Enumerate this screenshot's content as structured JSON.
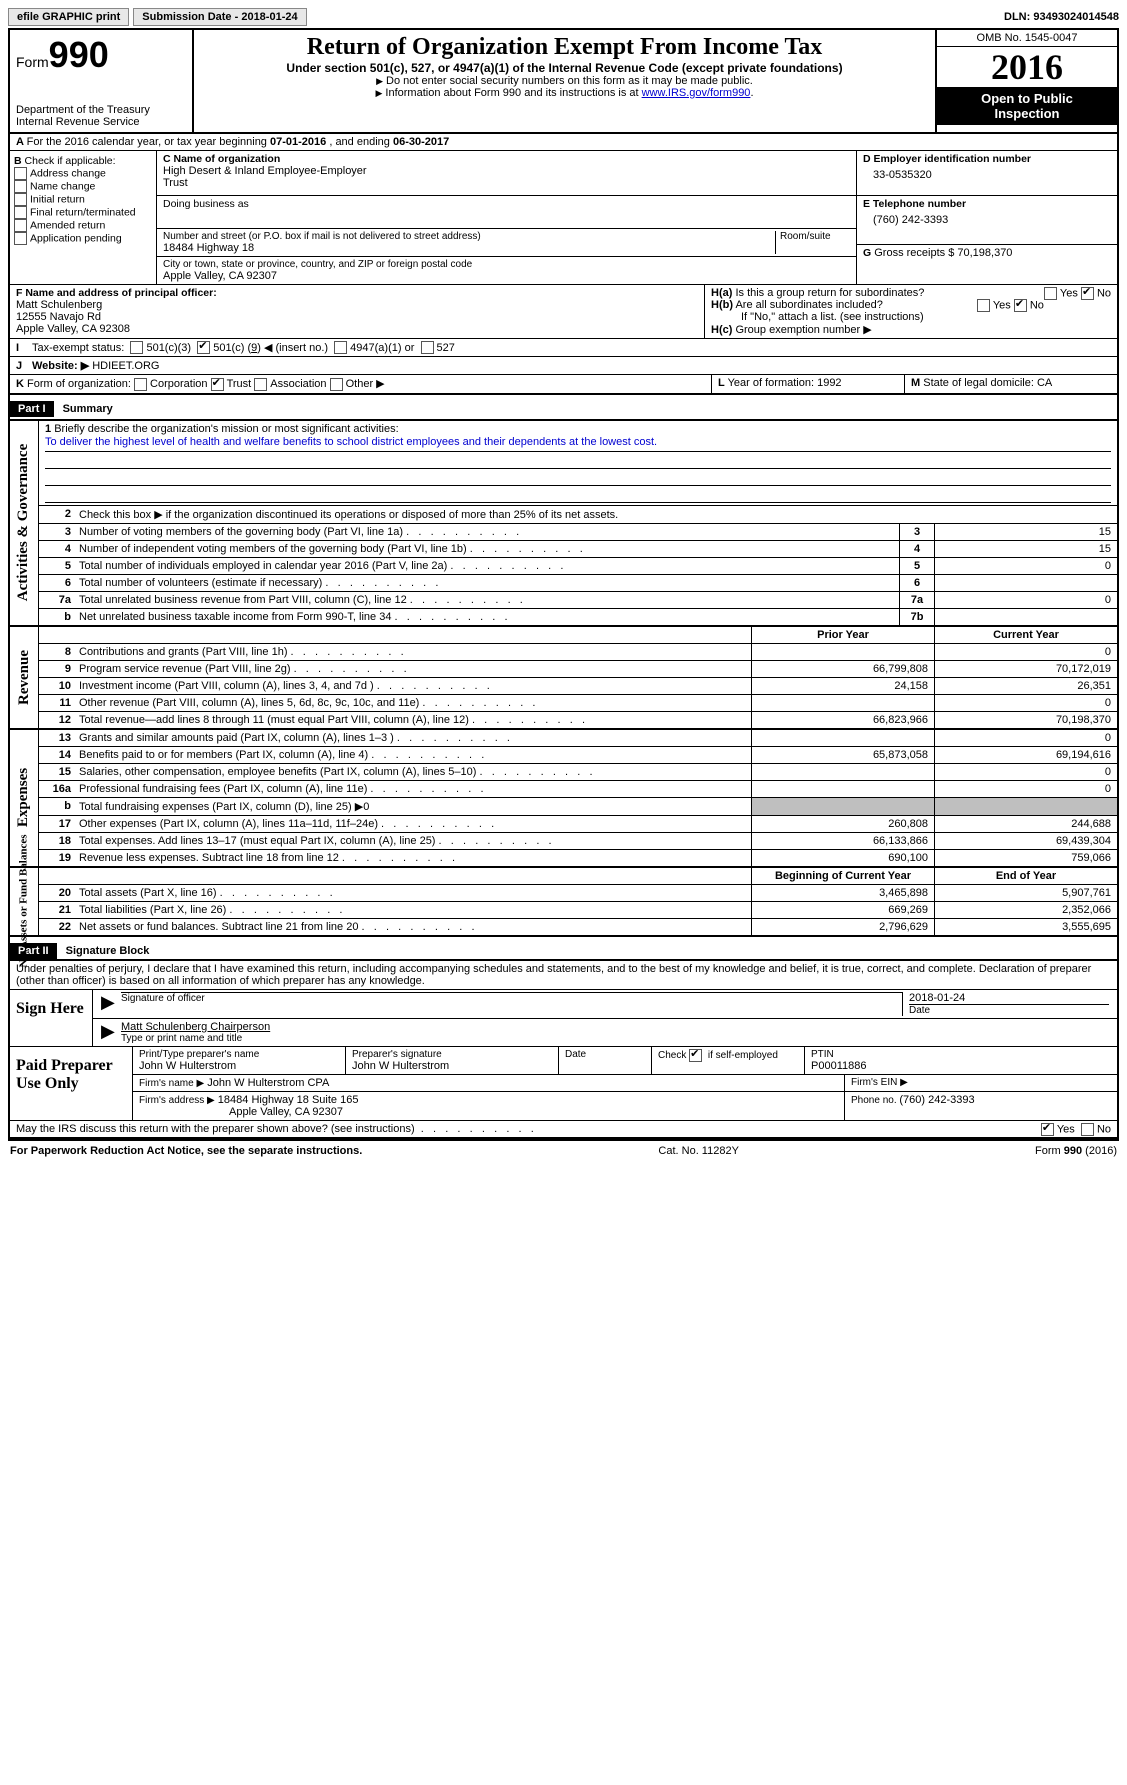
{
  "topbar": {
    "efile": "efile GRAPHIC print",
    "subdate_label": "Submission Date - ",
    "subdate": "2018-01-24",
    "dln_label": "DLN: ",
    "dln": "93493024014548"
  },
  "header": {
    "form_label": "Form",
    "form_num": "990",
    "dept1": "Department of the Treasury",
    "dept2": "Internal Revenue Service",
    "title": "Return of Organization Exempt From Income Tax",
    "sub": "Under section 501(c), 527, or 4947(a)(1) of the Internal Revenue Code (except private foundations)",
    "line1": "Do not enter social security numbers on this form as it may be made public.",
    "line2_pre": "Information about Form 990 and its instructions is at ",
    "line2_link": "www.IRS.gov/form990",
    "omb": "OMB No. 1545-0047",
    "year": "2016",
    "open1": "Open to Public",
    "open2": "Inspection"
  },
  "rowA": {
    "lead": "A",
    "text_pre": "For the 2016 calendar year, or tax year beginning ",
    "begin": "07-01-2016",
    "mid": " , and ending ",
    "end": "06-30-2017"
  },
  "colB": {
    "lead": "B",
    "label": "Check if applicable:",
    "opts": [
      "Address change",
      "Name change",
      "Initial return",
      "Final return/terminated",
      "Amended return",
      "Application pending"
    ]
  },
  "colC": {
    "name_lbl": "C Name of organization",
    "name1": "High Desert & Inland Employee-Employer",
    "name2": "Trust",
    "dba_lbl": "Doing business as",
    "addr_lbl": "Number and street (or P.O. box if mail is not delivered to street address)",
    "room_lbl": "Room/suite",
    "addr": "18484 Highway 18",
    "city_lbl": "City or town, state or province, country, and ZIP or foreign postal code",
    "city": "Apple Valley, CA  92307"
  },
  "colD": {
    "d_lbl": "D Employer identification number",
    "ein": "33-0535320",
    "e_lbl": "E Telephone number",
    "phone": "(760) 242-3393",
    "g_lbl": "G",
    "g_txt": "Gross receipts $ ",
    "g_val": "70,198,370"
  },
  "colF": {
    "lbl": "F  Name and address of principal officer:",
    "l1": "Matt Schulenberg",
    "l2": "12555 Navajo Rd",
    "l3": "Apple Valley, CA  92308"
  },
  "colH": {
    "ha": "H(a)",
    "ha_txt": "Is this a group return for subordinates?",
    "hb": "H(b)",
    "hb_txt": "Are all subordinates included?",
    "hb_note": "If \"No,\" attach a list. (see instructions)",
    "hc": "H(c)",
    "hc_txt": "Group exemption number ▶",
    "yes": "Yes",
    "no": "No"
  },
  "lineI": {
    "lead": "I",
    "lbl": "Tax-exempt status:",
    "o1": "501(c)(3)",
    "o2_pre": "501(c) (",
    "o2_num": "9",
    "o2_post": ") ◀ (insert no.)",
    "o3": "4947(a)(1) or",
    "o4": "527"
  },
  "lineJ": {
    "lead": "J",
    "lbl": "Website: ▶",
    "val": "HDIEET.ORG"
  },
  "lineK": {
    "lead": "K",
    "lbl": "Form of organization:",
    "o1": "Corporation",
    "o2": "Trust",
    "o3": "Association",
    "o4": "Other ▶"
  },
  "lineL": {
    "lead": "L",
    "txt": "Year of formation: ",
    "val": "1992"
  },
  "lineM": {
    "lead": "M",
    "txt": "State of legal domicile: ",
    "val": "CA"
  },
  "part1": {
    "hdr": "Part I",
    "title": "Summary",
    "side_gov": "Activities & Governance",
    "side_rev": "Revenue",
    "side_exp": "Expenses",
    "side_net": "Net Assets or Fund Balances",
    "l1_lbl": "Briefly describe the organization's mission or most significant activities:",
    "l1_txt": "To deliver the highest level of health and welfare benefits to school district employees and their dependents at the lowest cost.",
    "l2": "Check this box ▶        if the organization discontinued its operations or disposed of more than 25% of its net assets.",
    "rows_num": [
      {
        "n": "3",
        "t": "Number of voting members of the governing body (Part VI, line 1a)",
        "b": "3",
        "v": "15"
      },
      {
        "n": "4",
        "t": "Number of independent voting members of the governing body (Part VI, line 1b)",
        "b": "4",
        "v": "15"
      },
      {
        "n": "5",
        "t": "Total number of individuals employed in calendar year 2016 (Part V, line 2a)",
        "b": "5",
        "v": "0"
      },
      {
        "n": "6",
        "t": "Total number of volunteers (estimate if necessary)",
        "b": "6",
        "v": ""
      },
      {
        "n": "7a",
        "t": "Total unrelated business revenue from Part VIII, column (C), line 12",
        "b": "7a",
        "v": "0"
      },
      {
        "n": "b",
        "t": "Net unrelated business taxable income from Form 990-T, line 34",
        "b": "7b",
        "v": ""
      }
    ],
    "col_py": "Prior Year",
    "col_cy": "Current Year",
    "rev_rows": [
      {
        "n": "8",
        "t": "Contributions and grants (Part VIII, line 1h)",
        "py": "",
        "cy": "0"
      },
      {
        "n": "9",
        "t": "Program service revenue (Part VIII, line 2g)",
        "py": "66,799,808",
        "cy": "70,172,019"
      },
      {
        "n": "10",
        "t": "Investment income (Part VIII, column (A), lines 3, 4, and 7d )",
        "py": "24,158",
        "cy": "26,351"
      },
      {
        "n": "11",
        "t": "Other revenue (Part VIII, column (A), lines 5, 6d, 8c, 9c, 10c, and 11e)",
        "py": "",
        "cy": "0"
      },
      {
        "n": "12",
        "t": "Total revenue—add lines 8 through 11 (must equal Part VIII, column (A), line 12)",
        "py": "66,823,966",
        "cy": "70,198,370"
      }
    ],
    "exp_rows": [
      {
        "n": "13",
        "t": "Grants and similar amounts paid (Part IX, column (A), lines 1–3 )",
        "py": "",
        "cy": "0"
      },
      {
        "n": "14",
        "t": "Benefits paid to or for members (Part IX, column (A), line 4)",
        "py": "65,873,058",
        "cy": "69,194,616"
      },
      {
        "n": "15",
        "t": "Salaries, other compensation, employee benefits (Part IX, column (A), lines 5–10)",
        "py": "",
        "cy": "0"
      },
      {
        "n": "16a",
        "t": "Professional fundraising fees (Part IX, column (A), line 11e)",
        "py": "",
        "cy": "0"
      },
      {
        "n": "b",
        "t": "Total fundraising expenses (Part IX, column (D), line 25) ▶0",
        "py": "SHADE",
        "cy": "SHADE"
      },
      {
        "n": "17",
        "t": "Other expenses (Part IX, column (A), lines 11a–11d, 11f–24e)",
        "py": "260,808",
        "cy": "244,688"
      },
      {
        "n": "18",
        "t": "Total expenses. Add lines 13–17 (must equal Part IX, column (A), line 25)",
        "py": "66,133,866",
        "cy": "69,439,304"
      },
      {
        "n": "19",
        "t": "Revenue less expenses. Subtract line 18 from line 12",
        "py": "690,100",
        "cy": "759,066"
      }
    ],
    "net_hdr_py": "Beginning of Current Year",
    "net_hdr_cy": "End of Year",
    "net_rows": [
      {
        "n": "20",
        "t": "Total assets (Part X, line 16)",
        "py": "3,465,898",
        "cy": "5,907,761"
      },
      {
        "n": "21",
        "t": "Total liabilities (Part X, line 26)",
        "py": "669,269",
        "cy": "2,352,066"
      },
      {
        "n": "22",
        "t": "Net assets or fund balances. Subtract line 21 from line 20",
        "py": "2,796,629",
        "cy": "3,555,695"
      }
    ]
  },
  "part2": {
    "hdr": "Part II",
    "title": "Signature Block",
    "perjury": "Under penalties of perjury, I declare that I have examined this return, including accompanying schedules and statements, and to the best of my knowledge and belief, it is true, correct, and complete. Declaration of preparer (other than officer) is based on all information of which preparer has any knowledge.",
    "sign_here": "Sign Here",
    "sig_officer": "Signature of officer",
    "sig_date": "2018-01-24",
    "date_lbl": "Date",
    "sig_name": "Matt Schulenberg Chairperson",
    "sig_name_lbl": "Type or print name and title",
    "paid": "Paid Preparer Use Only",
    "prep_name_lbl": "Print/Type preparer's name",
    "prep_name": "John W Hulterstrom",
    "prep_sig_lbl": "Preparer's signature",
    "prep_sig": "John W Hulterstrom",
    "prep_date_lbl": "Date",
    "prep_self_lbl": "Check         if self-employed",
    "ptin_lbl": "PTIN",
    "ptin": "P00011886",
    "firm_name_lbl": "Firm's name      ▶",
    "firm_name": "John W Hulterstrom CPA",
    "firm_ein_lbl": "Firm's EIN ▶",
    "firm_addr_lbl": "Firm's address ▶",
    "firm_addr1": "18484 Highway 18 Suite 165",
    "firm_addr2": "Apple Valley, CA  92307",
    "firm_phone_lbl": "Phone no. ",
    "firm_phone": "(760) 242-3393",
    "discuss": "May the IRS discuss this return with the preparer shown above? (see instructions)",
    "yes": "Yes",
    "no": "No"
  },
  "footer": {
    "left": "For Paperwork Reduction Act Notice, see the separate instructions.",
    "mid": "Cat. No. 11282Y",
    "right": "Form 990 (2016)"
  }
}
